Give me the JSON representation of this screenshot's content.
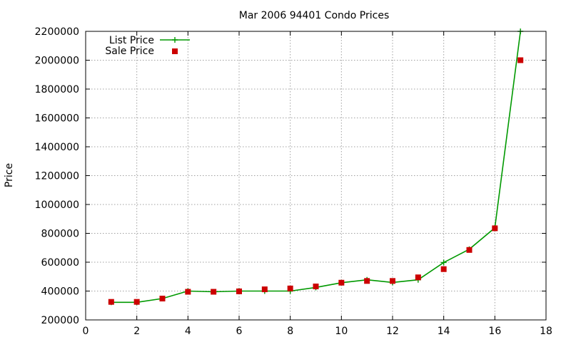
{
  "chart_data": {
    "type": "line",
    "title": "Mar 2006 94401 Condo Prices",
    "xlabel": "",
    "ylabel": "Price",
    "xlim": [
      0,
      18
    ],
    "ylim": [
      200000,
      2200000
    ],
    "x_ticks": [
      0,
      2,
      4,
      6,
      8,
      10,
      12,
      14,
      16,
      18
    ],
    "y_ticks": [
      200000,
      400000,
      600000,
      800000,
      1000000,
      1200000,
      1400000,
      1600000,
      1800000,
      2000000,
      2200000
    ],
    "grid": true,
    "legend_position": "top-left",
    "series": [
      {
        "name": "List Price",
        "style": "line-with-plus-markers",
        "color": "#009900",
        "points": [
          [
            1,
            322000
          ],
          [
            2,
            322000
          ],
          [
            3,
            348000
          ],
          [
            4,
            400000
          ],
          [
            5,
            395000
          ],
          [
            6,
            400000
          ],
          [
            7,
            400000
          ],
          [
            8,
            400000
          ],
          [
            9,
            425000
          ],
          [
            10,
            458000
          ],
          [
            11,
            478000
          ],
          [
            12,
            460000
          ],
          [
            13,
            478000
          ],
          [
            14,
            598000
          ],
          [
            15,
            690000
          ],
          [
            16,
            838000
          ],
          [
            17,
            2200000
          ]
        ]
      },
      {
        "name": "Sale Price",
        "style": "square-markers",
        "color": "#cc0000",
        "points": [
          [
            1,
            325000
          ],
          [
            2,
            325000
          ],
          [
            3,
            348000
          ],
          [
            4,
            395000
          ],
          [
            5,
            395000
          ],
          [
            6,
            398000
          ],
          [
            7,
            412000
          ],
          [
            8,
            418000
          ],
          [
            9,
            432000
          ],
          [
            10,
            458000
          ],
          [
            11,
            470000
          ],
          [
            12,
            470000
          ],
          [
            13,
            495000
          ],
          [
            14,
            552000
          ],
          [
            15,
            685000
          ],
          [
            16,
            835000
          ],
          [
            17,
            2000000
          ]
        ]
      }
    ]
  }
}
